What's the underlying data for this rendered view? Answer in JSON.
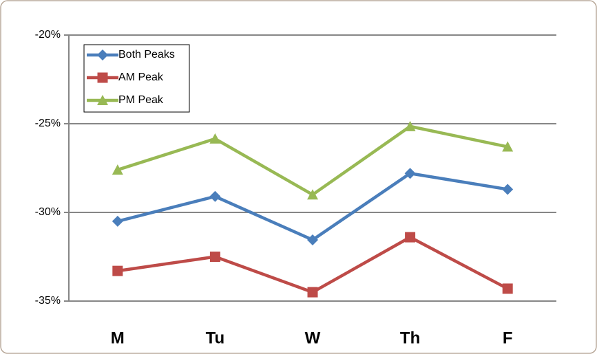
{
  "chart_data": {
    "type": "line",
    "categories": [
      "M",
      "Tu",
      "W",
      "Th",
      "F"
    ],
    "series": [
      {
        "name": "Both Peaks",
        "color": "#4a7ebb",
        "marker": "diamond",
        "values": [
          -30.5,
          -29.1,
          -31.55,
          -27.8,
          -28.7
        ]
      },
      {
        "name": "AM Peak",
        "color": "#be4b48",
        "marker": "square",
        "values": [
          -33.3,
          -32.5,
          -34.5,
          -31.4,
          -34.3
        ]
      },
      {
        "name": "PM Peak",
        "color": "#98b954",
        "marker": "triangle",
        "values": [
          -27.6,
          -25.85,
          -29.0,
          -25.15,
          -26.3
        ]
      }
    ],
    "ylim": [
      -35,
      -20
    ],
    "yticks": [
      {
        "value": -35,
        "label": "-35%"
      },
      {
        "value": -30,
        "label": "-30%"
      },
      {
        "value": -25,
        "label": "-25%"
      },
      {
        "value": -20,
        "label": "-20%"
      }
    ],
    "grid": true,
    "legend": "upper left"
  }
}
